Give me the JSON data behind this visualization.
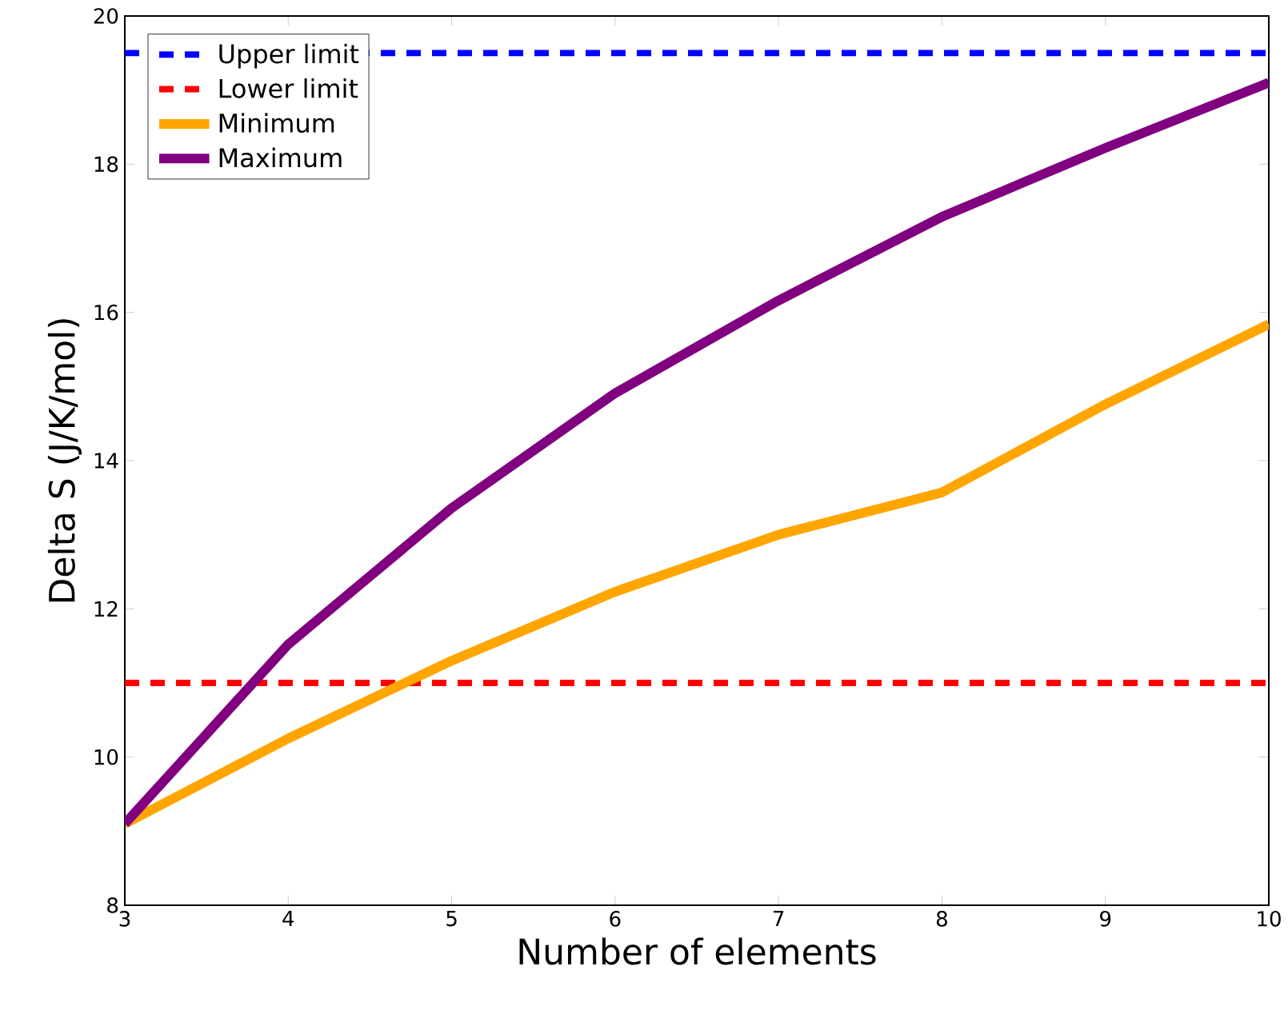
{
  "chart_data": {
    "type": "line",
    "xlabel": "Number of elements",
    "ylabel": "Delta S (J/K/mol)",
    "x": [
      3,
      4,
      5,
      6,
      7,
      8,
      9,
      10
    ],
    "series": [
      {
        "name": "Minimum",
        "color": "#ffa500",
        "values": [
          9.1,
          10.25,
          11.3,
          12.23,
          13.0,
          13.57,
          14.76,
          15.84
        ]
      },
      {
        "name": "Maximum",
        "color": "#800080",
        "values": [
          9.1,
          11.52,
          13.36,
          14.91,
          16.16,
          17.29,
          18.22,
          19.1
        ]
      }
    ],
    "ref_lines": [
      {
        "axis": "y",
        "value": 19.5,
        "label": "Upper limit",
        "color": "#0000ff",
        "line_style": "dashed"
      },
      {
        "axis": "y",
        "value": 11,
        "label": "Lower limit",
        "color": "#ff0000",
        "line_style": "dashed"
      }
    ],
    "xlim": [
      3,
      10
    ],
    "ylim": [
      8,
      20
    ],
    "xticks": [
      3,
      4,
      5,
      6,
      7,
      8,
      9,
      10
    ],
    "yticks": [
      8,
      10,
      12,
      14,
      16,
      18,
      20
    ],
    "grid": false,
    "legend": "top left",
    "marker": "none",
    "line_style": "solid"
  }
}
